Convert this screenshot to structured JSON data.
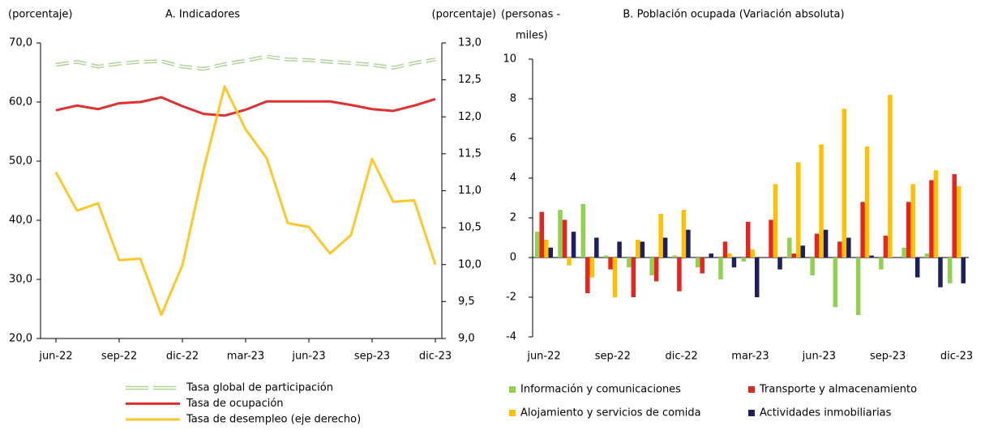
{
  "chart_data": [
    {
      "type": "line",
      "title": "A. Indicadores",
      "y_label": "(porcentaje)",
      "y2_label": "(porcentaje)",
      "categories": [
        "jun-22",
        null,
        null,
        "sep-22",
        null,
        null,
        "dic-22",
        null,
        null,
        "mar-23",
        null,
        null,
        "jun-23",
        null,
        null,
        "sep-23",
        null,
        null,
        "dic-23"
      ],
      "ylim": [
        20,
        70
      ],
      "yticks": [
        {
          "value": 20,
          "label": "20,0"
        },
        {
          "value": 30,
          "label": "30,0"
        },
        {
          "value": 40,
          "label": "40,0"
        },
        {
          "value": 50,
          "label": "50,0"
        },
        {
          "value": 60,
          "label": "60,0"
        },
        {
          "value": 70,
          "label": "70,0"
        }
      ],
      "y2lim": [
        9,
        13
      ],
      "y2ticks": [
        {
          "value": 9,
          "label": "9,0"
        },
        {
          "value": 9.5,
          "label": "9,5"
        },
        {
          "value": 10,
          "label": "10,0"
        },
        {
          "value": 10.5,
          "label": "10,5"
        },
        {
          "value": 11,
          "label": "11,0"
        },
        {
          "value": 11.5,
          "label": "11,5"
        },
        {
          "value": 12,
          "label": "12,0"
        },
        {
          "value": 12.5,
          "label": "12,5"
        },
        {
          "value": 13,
          "label": "13,0"
        }
      ],
      "series": [
        {
          "name": "Tasa global de participación",
          "color": "#a9d18e",
          "dashed": true,
          "values": [
            66.3,
            66.8,
            66.0,
            66.5,
            66.8,
            66.9,
            66.0,
            65.6,
            66.4,
            67.0,
            67.7,
            67.2,
            67.1,
            66.8,
            66.6,
            66.3,
            65.8,
            66.6,
            67.2
          ]
        },
        {
          "name": "Tasa de ocupación",
          "color": "#e03030",
          "values": [
            58.6,
            59.4,
            58.8,
            59.8,
            60.0,
            60.8,
            59.3,
            58.0,
            57.7,
            58.7,
            60.1,
            60.1,
            60.1,
            60.1,
            59.5,
            58.8,
            58.5,
            59.4,
            60.5
          ]
        },
        {
          "name": "Tasa de desempleo (eje derecho)",
          "color": "#ffc729",
          "axis": "y2",
          "values": [
            11.25,
            10.73,
            10.83,
            10.06,
            10.08,
            9.32,
            9.99,
            11.28,
            12.41,
            11.83,
            11.44,
            10.56,
            10.51,
            10.15,
            10.4,
            11.43,
            10.85,
            10.87,
            10.0
          ]
        }
      ]
    },
    {
      "type": "bar",
      "title": "B. Población ocupada (Variación absoluta)",
      "y_label": [
        "(personas -",
        "miles)"
      ],
      "categories": [
        "jun-22",
        null,
        null,
        "sep-22",
        null,
        null,
        "dic-22",
        null,
        null,
        "mar-23",
        null,
        null,
        "jun-23",
        null,
        null,
        "sep-23",
        null,
        null,
        "dic-23"
      ],
      "ylim": [
        -4,
        10
      ],
      "yticks": [
        -4,
        -2,
        0,
        2,
        4,
        6,
        8,
        10
      ],
      "series": [
        {
          "name": "Información y comunicaciones",
          "color": "#92d050",
          "values": [
            1.3,
            2.4,
            2.7,
            0.1,
            -0.5,
            -0.9,
            0.1,
            -0.5,
            -1.1,
            -0.2,
            0.0,
            1.0,
            -0.9,
            -2.5,
            -2.9,
            -0.6,
            0.5,
            0.2,
            -1.3
          ]
        },
        {
          "name": "Transporte y almacenamiento",
          "color": "#e52520",
          "values": [
            2.3,
            1.9,
            -1.8,
            -0.6,
            -2.0,
            -1.2,
            -1.7,
            -0.8,
            0.8,
            1.8,
            1.9,
            0.2,
            1.2,
            0.8,
            2.8,
            1.1,
            2.8,
            3.9,
            4.2
          ]
        },
        {
          "name": "Alojamiento y servicios de comida",
          "color": "#ffc000",
          "values": [
            0.9,
            -0.4,
            -1.0,
            -2.0,
            0.9,
            2.2,
            2.4,
            0.0,
            0.2,
            0.4,
            3.7,
            4.8,
            5.7,
            7.5,
            5.6,
            8.2,
            3.7,
            4.4,
            3.6
          ]
        },
        {
          "name": "Actividades inmobiliarias",
          "color": "#1f1f5f",
          "values": [
            0.5,
            1.3,
            1.0,
            0.8,
            0.8,
            1.0,
            1.4,
            0.2,
            -0.5,
            -2.0,
            -0.6,
            0.6,
            1.4,
            1.0,
            0.1,
            0.0,
            -1.0,
            -1.5,
            -1.3
          ]
        }
      ]
    }
  ]
}
